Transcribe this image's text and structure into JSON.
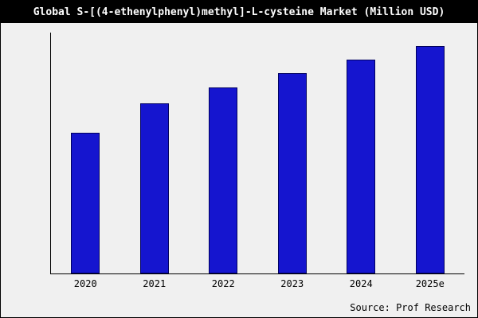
{
  "title": "Global S-[(4-ethenylphenyl)methyl]-L-cysteine Market (Million USD)",
  "source": "Source: Prof Research",
  "colors": {
    "background": "#f0f0f0",
    "title_bg": "#000000",
    "title_text": "#ffffff",
    "bar_fill": "#1515cf",
    "bar_border": "#000060",
    "axis": "#000000"
  },
  "chart_data": {
    "type": "bar",
    "categories": [
      "2020",
      "2021",
      "2022",
      "2023",
      "2024",
      "2025e"
    ],
    "values": [
      62,
      75,
      82,
      88,
      94,
      100
    ],
    "title": "Global S-[(4-ethenylphenyl)methyl]-L-cysteine Market (Million USD)",
    "xlabel": "",
    "ylabel": "",
    "ylim": [
      0,
      106
    ],
    "grid": false,
    "legend": false,
    "annotations": [
      "Source: Prof Research"
    ]
  }
}
